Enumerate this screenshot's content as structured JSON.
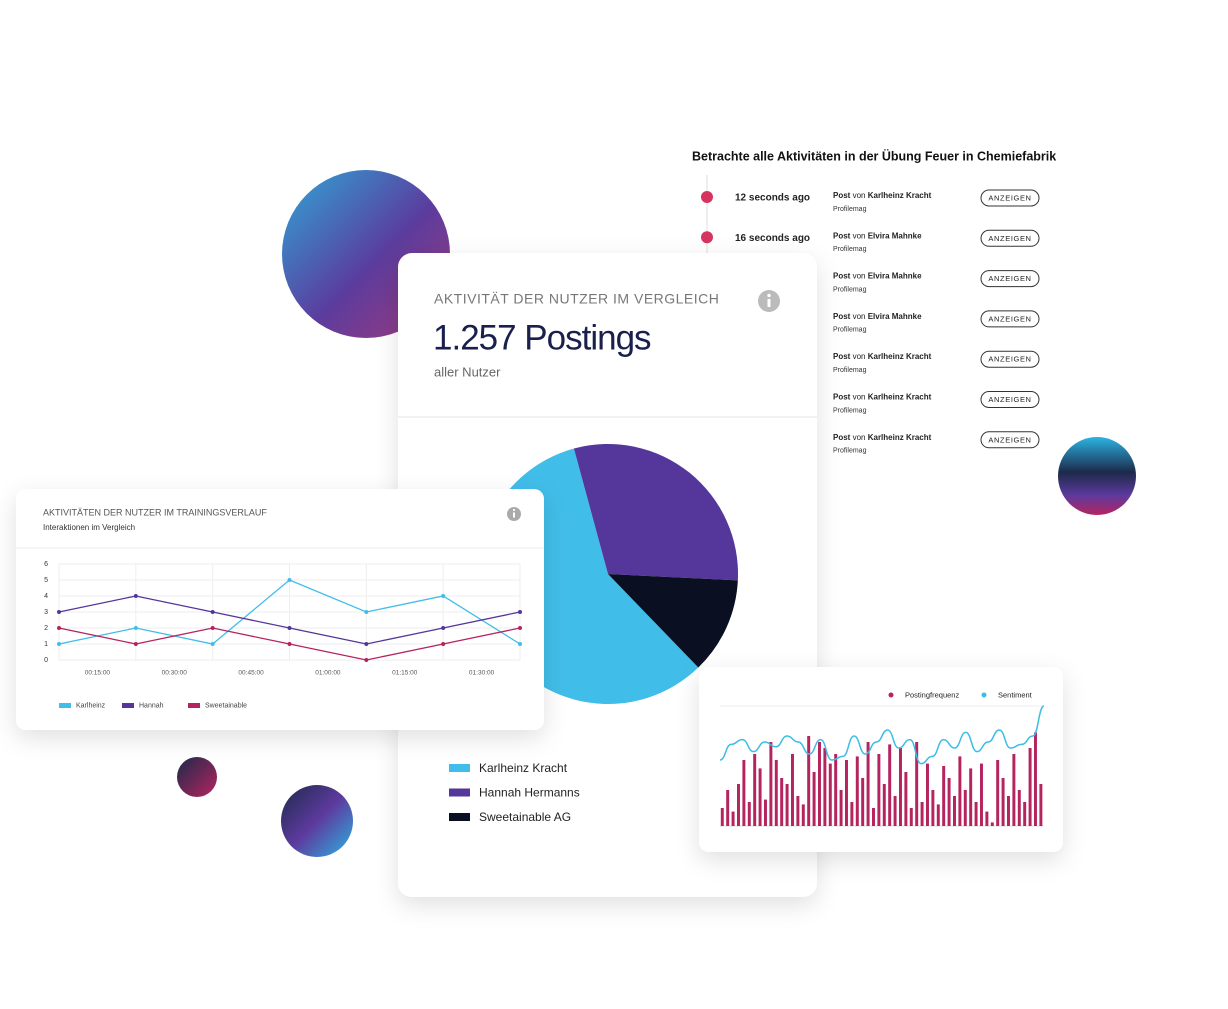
{
  "activity_feed": {
    "title": "Betrachte alle Aktivitäten in der Übung Feuer in Chemiefabrik",
    "items": [
      {
        "time": "12 seconds ago",
        "type": "Post",
        "by": "von",
        "author": "Karlheinz Kracht",
        "source": "Profilemag",
        "button": "ANZEIGEN"
      },
      {
        "time": "16 seconds ago",
        "type": "Post",
        "by": "von",
        "author": "Elvira Mahnke",
        "source": "Profilemag",
        "button": "ANZEIGEN"
      },
      {
        "type": "Post",
        "by": "von",
        "author": "Elvira Mahnke",
        "source": "Profilemag",
        "button": "ANZEIGEN"
      },
      {
        "type": "Post",
        "by": "von",
        "author": "Elvira Mahnke",
        "source": "Profilemag",
        "button": "ANZEIGEN"
      },
      {
        "type": "Post",
        "by": "von",
        "author": "Karlheinz Kracht",
        "source": "Profilemag",
        "button": "ANZEIGEN"
      },
      {
        "type": "Post",
        "by": "von",
        "author": "Karlheinz Kracht",
        "source": "Profilemag",
        "button": "ANZEIGEN"
      },
      {
        "type": "Post",
        "by": "von",
        "author": "Karlheinz Kracht",
        "source": "Profilemag",
        "button": "ANZEIGEN"
      }
    ]
  },
  "pie_card": {
    "title": "AKTIVITÄT DER NUTZER IM VERGLEICH",
    "headline": "1.257 Postings",
    "subtitle": "aller Nutzer",
    "chart": {
      "type": "pie",
      "categories": [
        "Karlheinz Kracht",
        "Hannah Hermanns",
        "Sweetainable AG"
      ],
      "values": [
        58,
        30,
        12
      ],
      "colors": [
        "#41bde9",
        "#55369a",
        "#0a0f22"
      ]
    }
  },
  "line_card": {
    "title": "AKTIVITÄTEN DER NUTZER IM TRAININGSVERLAUF",
    "subtitle": "Interaktionen im Vergleich",
    "chart": {
      "type": "line",
      "x_labels": [
        "00:15:00",
        "00:30:00",
        "00:45:00",
        "01:00:00",
        "01:15:00",
        "01:30:00"
      ],
      "ylim": [
        0,
        6
      ],
      "yticks": [
        0,
        1,
        2,
        3,
        4,
        5,
        6
      ],
      "grid": true,
      "series": [
        {
          "name": "Karlheinz",
          "color": "#41bde9",
          "values": [
            1,
            2,
            1,
            5,
            3,
            4,
            1
          ]
        },
        {
          "name": "Hannah",
          "color": "#55369a",
          "values": [
            3,
            4,
            3,
            2,
            1,
            2,
            3
          ]
        },
        {
          "name": "Sweetainable",
          "color": "#b5245f",
          "values": [
            2,
            1,
            2,
            1,
            0,
            1,
            2
          ]
        }
      ]
    }
  },
  "bar_card": {
    "chart": {
      "type": "bar",
      "ylim": [
        0,
        100
      ],
      "series": [
        {
          "name": "Postingfrequenz",
          "color": "#b5245f",
          "values": [
            15,
            30,
            12,
            35,
            55,
            20,
            60,
            48,
            22,
            70,
            55,
            40,
            35,
            60,
            25,
            18,
            75,
            45,
            70,
            65,
            52,
            60,
            30,
            55,
            20,
            58,
            40,
            70,
            15,
            60,
            35,
            68,
            25,
            65,
            45,
            15,
            70,
            20,
            52,
            30,
            18,
            50,
            40,
            25,
            58,
            30,
            48,
            20,
            52,
            12,
            3,
            55,
            40,
            25,
            60,
            30,
            20,
            65,
            78,
            35
          ]
        },
        {
          "name": "Sentiment",
          "color": "#3dbde6",
          "type": "line",
          "values": [
            55,
            68,
            72,
            62,
            70,
            66,
            75,
            70,
            60,
            72,
            55,
            58,
            75,
            60,
            70,
            80,
            65,
            72,
            52,
            58,
            72,
            65,
            78,
            62,
            70,
            80,
            65,
            68,
            75,
            100
          ]
        }
      ]
    }
  }
}
